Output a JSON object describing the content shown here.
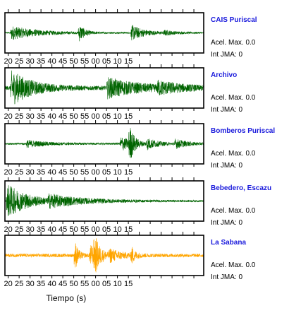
{
  "chart_data": {
    "type": "line",
    "xlabel": "Tiempo (s)",
    "x_tick_labels": [
      "20",
      "25",
      "30",
      "35",
      "40",
      "45",
      "50",
      "55",
      "00",
      "05",
      "10",
      "15"
    ],
    "panels": [
      {
        "name": "CAIS Puriscal",
        "acel_label": "Acel. Max. 0.0",
        "int_label": "Int JMA: 0",
        "color": "#006400",
        "amplitude": 0.45,
        "noise": 0.08,
        "bursts": [
          {
            "t": 3,
            "a": 0.8,
            "d": 12
          },
          {
            "t": 34,
            "a": 1.0,
            "d": 2.5
          },
          {
            "t": 58,
            "a": 0.9,
            "d": 6
          },
          {
            "t": 73,
            "a": 0.25,
            "d": 5
          }
        ]
      },
      {
        "name": "Archivo",
        "acel_label": "Acel. Max. 0.0",
        "int_label": "Int JMA: 0",
        "color": "#006400",
        "amplitude": 0.9,
        "noise": 0.12,
        "bursts": [
          {
            "t": 3,
            "a": 1.0,
            "d": 9
          },
          {
            "t": 47,
            "a": 0.55,
            "d": 14
          },
          {
            "t": 70,
            "a": 0.3,
            "d": 10
          }
        ]
      },
      {
        "name": "Bomberos Puriscal",
        "acel_label": "Acel. Max. 0.0",
        "int_label": "Int JMA: 0",
        "color": "#006400",
        "amplitude": 0.9,
        "noise": 0.05,
        "bursts": [
          {
            "t": 10,
            "a": 0.2,
            "d": 10
          },
          {
            "t": 53,
            "a": 0.45,
            "d": 5
          },
          {
            "t": 57,
            "a": 1.0,
            "d": 2
          },
          {
            "t": 65,
            "a": 0.3,
            "d": 5
          },
          {
            "t": 78,
            "a": 0.25,
            "d": 6
          }
        ]
      },
      {
        "name": "Bebedero, Escazu",
        "acel_label": "Acel. Max. 0.0",
        "int_label": "Int JMA: 0",
        "color": "#006400",
        "amplitude": 0.9,
        "noise": 0.04,
        "bursts": [
          {
            "t": 1,
            "a": 1.0,
            "d": 10
          },
          {
            "t": 20,
            "a": 0.3,
            "d": 20
          }
        ]
      },
      {
        "name": "La Sabana",
        "acel_label": "Acel. Max. 0.0",
        "int_label": "Int JMA: 0",
        "color": "#ffa500",
        "amplitude": 0.9,
        "noise": 0.1,
        "bursts": [
          {
            "t": 32,
            "a": 0.9,
            "d": 1.5
          },
          {
            "t": 39,
            "a": 0.6,
            "d": 4
          },
          {
            "t": 41,
            "a": 1.0,
            "d": 2
          },
          {
            "t": 48,
            "a": 0.3,
            "d": 6
          },
          {
            "t": 58,
            "a": 0.45,
            "d": 1.5
          }
        ]
      }
    ]
  }
}
